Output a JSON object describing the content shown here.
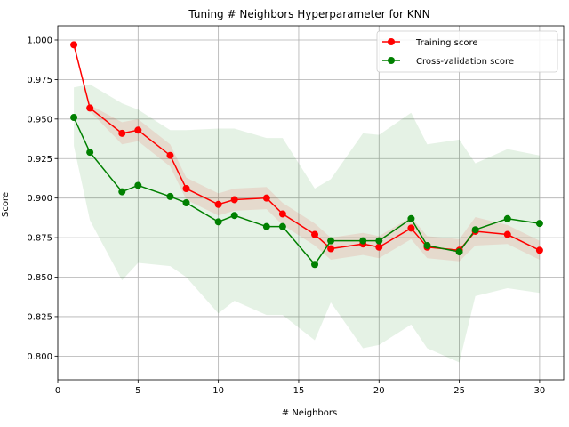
{
  "chart_data": {
    "type": "line",
    "title": "Tuning # Neighbors Hyperparameter for KNN",
    "xlabel": "# Neighbors",
    "ylabel": "Score",
    "xlim": [
      0,
      31.5
    ],
    "ylim": [
      0.785,
      1.009
    ],
    "xticks": [
      0,
      5,
      10,
      15,
      20,
      25,
      30
    ],
    "yticks": [
      0.8,
      0.825,
      0.85,
      0.875,
      0.9,
      0.925,
      0.95,
      0.975,
      1.0
    ],
    "grid": true,
    "legend": "top-right",
    "x": [
      1,
      2,
      4,
      5,
      7,
      8,
      10,
      11,
      13,
      14,
      16,
      17,
      19,
      20,
      22,
      23,
      25,
      26,
      28,
      30
    ],
    "series": [
      {
        "name": "Training score",
        "color": "#ff0000",
        "values": [
          0.997,
          0.957,
          0.941,
          0.943,
          0.927,
          0.906,
          0.896,
          0.899,
          0.9,
          0.89,
          0.877,
          0.868,
          0.871,
          0.869,
          0.881,
          0.869,
          0.867,
          0.879,
          0.877,
          0.867
        ],
        "band_lower": [
          0.997,
          0.955,
          0.934,
          0.936,
          0.92,
          0.899,
          0.889,
          0.892,
          0.893,
          0.883,
          0.87,
          0.861,
          0.864,
          0.862,
          0.874,
          0.862,
          0.86,
          0.87,
          0.871,
          0.861
        ],
        "band_upper": [
          0.997,
          0.959,
          0.948,
          0.95,
          0.934,
          0.913,
          0.903,
          0.906,
          0.907,
          0.897,
          0.884,
          0.875,
          0.878,
          0.876,
          0.888,
          0.876,
          0.874,
          0.888,
          0.883,
          0.873
        ]
      },
      {
        "name": "Cross-validation score",
        "color": "#008000",
        "values": [
          0.951,
          0.929,
          0.904,
          0.908,
          0.901,
          0.897,
          0.885,
          0.889,
          0.882,
          0.882,
          0.858,
          0.873,
          0.873,
          0.873,
          0.887,
          0.87,
          0.866,
          0.88,
          0.887,
          0.884
        ],
        "band_lower": [
          0.933,
          0.886,
          0.848,
          0.859,
          0.857,
          0.85,
          0.827,
          0.835,
          0.826,
          0.826,
          0.81,
          0.834,
          0.805,
          0.807,
          0.82,
          0.805,
          0.796,
          0.838,
          0.843,
          0.84
        ],
        "band_upper": [
          0.97,
          0.972,
          0.96,
          0.956,
          0.943,
          0.943,
          0.944,
          0.944,
          0.938,
          0.938,
          0.906,
          0.912,
          0.941,
          0.94,
          0.954,
          0.934,
          0.937,
          0.922,
          0.931,
          0.927
        ]
      }
    ]
  }
}
